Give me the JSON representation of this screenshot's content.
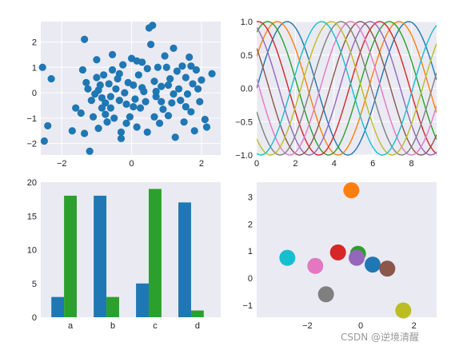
{
  "watermark": "CSDN @逆境清醒",
  "colors": {
    "panel_bg": "#eaeaf2",
    "grid": "#ffffff",
    "blue": "#1f77b4",
    "green": "#2ca02c"
  },
  "chart_data": [
    {
      "type": "scatter",
      "xlim": [
        -2.6,
        2.55
      ],
      "ylim": [
        -2.45,
        2.8
      ],
      "xticks": [
        -2,
        0,
        2
      ],
      "yticks": [
        -2,
        -1,
        0,
        1,
        2
      ],
      "grid": true,
      "color": "#1f77b4",
      "points": [
        [
          -2.55,
          1.0
        ],
        [
          -2.3,
          0.55
        ],
        [
          -2.4,
          -1.3
        ],
        [
          -2.5,
          -1.9
        ],
        [
          -1.7,
          -1.5
        ],
        [
          -1.35,
          2.1
        ],
        [
          -1.4,
          0.9
        ],
        [
          -1.3,
          0.4
        ],
        [
          -1.45,
          -0.8
        ],
        [
          -1.35,
          -1.6
        ],
        [
          -1.2,
          -2.3
        ],
        [
          -1.1,
          -0.95
        ],
        [
          -1.15,
          -0.3
        ],
        [
          -1.05,
          -0.05
        ],
        [
          -0.95,
          0.1
        ],
        [
          -0.9,
          0.3
        ],
        [
          -0.85,
          -0.6
        ],
        [
          -1.0,
          1.3
        ],
        [
          -0.95,
          -1.4
        ],
        [
          -0.8,
          0.7
        ],
        [
          -0.75,
          -0.4
        ],
        [
          -0.7,
          -1.15
        ],
        [
          -0.65,
          0.35
        ],
        [
          -0.6,
          -0.6
        ],
        [
          -0.55,
          0.9
        ],
        [
          -0.5,
          -1.0
        ],
        [
          -0.45,
          0.15
        ],
        [
          -0.4,
          0.55
        ],
        [
          -0.35,
          -0.3
        ],
        [
          -0.3,
          -1.8
        ],
        [
          -0.25,
          1.1
        ],
        [
          -0.2,
          0.0
        ],
        [
          -0.15,
          -0.45
        ],
        [
          -0.1,
          0.4
        ],
        [
          -0.05,
          -0.95
        ],
        [
          0.0,
          1.35
        ],
        [
          0.05,
          0.3
        ],
        [
          0.1,
          -0.25
        ],
        [
          0.15,
          -1.35
        ],
        [
          0.2,
          0.7
        ],
        [
          0.25,
          -0.6
        ],
        [
          0.3,
          1.2
        ],
        [
          0.35,
          0.05
        ],
        [
          0.4,
          -0.35
        ],
        [
          0.45,
          -1.55
        ],
        [
          0.5,
          2.55
        ],
        [
          0.6,
          2.65
        ],
        [
          0.55,
          1.9
        ],
        [
          0.65,
          0.45
        ],
        [
          0.7,
          -0.15
        ],
        [
          0.75,
          1.0
        ],
        [
          0.8,
          -1.2
        ],
        [
          0.85,
          0.25
        ],
        [
          0.9,
          -0.65
        ],
        [
          1.0,
          1.0
        ],
        [
          1.05,
          -0.9
        ],
        [
          1.1,
          0.55
        ],
        [
          1.15,
          -0.4
        ],
        [
          1.2,
          1.75
        ],
        [
          1.25,
          -1.75
        ],
        [
          1.35,
          0.15
        ],
        [
          1.4,
          -0.3
        ],
        [
          1.45,
          1.05
        ],
        [
          1.5,
          -1.15
        ],
        [
          1.55,
          0.6
        ],
        [
          1.6,
          -0.05
        ],
        [
          1.65,
          1.4
        ],
        [
          1.7,
          -0.75
        ],
        [
          1.75,
          0.35
        ],
        [
          1.8,
          -1.5
        ],
        [
          1.85,
          0.9
        ],
        [
          1.9,
          0.15
        ],
        [
          1.95,
          -0.35
        ],
        [
          2.0,
          0.5
        ],
        [
          2.1,
          -1.05
        ],
        [
          2.15,
          -1.35
        ],
        [
          2.3,
          0.75
        ],
        [
          -1.6,
          -0.6
        ],
        [
          -0.3,
          -1.55
        ],
        [
          0.95,
          1.45
        ],
        [
          -0.55,
          1.5
        ],
        [
          0.15,
          1.25
        ],
        [
          1.3,
          0.85
        ],
        [
          -0.85,
          -0.2
        ],
        [
          0.45,
          0.95
        ],
        [
          1.05,
          0.3
        ],
        [
          -1.25,
          0.15
        ],
        [
          0.65,
          -0.95
        ],
        [
          -0.15,
          -1.2
        ],
        [
          1.55,
          -0.55
        ],
        [
          -0.6,
          -0.15
        ],
        [
          0.3,
          0.2
        ],
        [
          0.85,
          -0.35
        ],
        [
          -1.0,
          0.6
        ],
        [
          1.2,
          -0.05
        ],
        [
          0.05,
          -0.55
        ],
        [
          -0.35,
          0.75
        ],
        [
          0.7,
          0.05
        ],
        [
          1.7,
          1.05
        ],
        [
          -0.75,
          -0.85
        ]
      ]
    },
    {
      "type": "line",
      "xlim": [
        0,
        9.3
      ],
      "ylim": [
        -1.0,
        1.0
      ],
      "xticks": [
        0,
        2,
        4,
        6,
        8
      ],
      "yticks": [
        -1.0,
        -0.5,
        0.0,
        0.5,
        1.0
      ],
      "grid": true,
      "function": "sin",
      "series": [
        {
          "phase": 0.0,
          "color": "#1f77b4"
        },
        {
          "phase": 0.5,
          "color": "#ff7f0e"
        },
        {
          "phase": 1.0,
          "color": "#2ca02c"
        },
        {
          "phase": 1.5,
          "color": "#d62728"
        },
        {
          "phase": 2.0,
          "color": "#9467bd"
        },
        {
          "phase": 2.5,
          "color": "#8c564b"
        },
        {
          "phase": 3.0,
          "color": "#e377c2"
        },
        {
          "phase": 3.5,
          "color": "#7f7f7f"
        },
        {
          "phase": 4.0,
          "color": "#bcbd22"
        },
        {
          "phase": 4.5,
          "color": "#17becf"
        }
      ]
    },
    {
      "type": "bar",
      "categories": [
        "a",
        "b",
        "c",
        "d"
      ],
      "ylim": [
        0,
        20
      ],
      "yticks": [
        0,
        5,
        10,
        15,
        20
      ],
      "grid": false,
      "series": [
        {
          "values": [
            3,
            18,
            5,
            17
          ],
          "color": "#1f77b4"
        },
        {
          "values": [
            18,
            3,
            19,
            1
          ],
          "color": "#2ca02c"
        }
      ]
    },
    {
      "type": "scatter",
      "xlim": [
        -3.9,
        2.85
      ],
      "ylim": [
        -1.45,
        3.55
      ],
      "xticks": [
        -2,
        0,
        2
      ],
      "yticks": [
        -1,
        0,
        1,
        2,
        3
      ],
      "grid": false,
      "points": [
        {
          "x": 0.45,
          "y": 0.5,
          "color": "#1f77b4"
        },
        {
          "x": -0.35,
          "y": 3.25,
          "color": "#ff7f0e"
        },
        {
          "x": -0.1,
          "y": 0.9,
          "color": "#2ca02c"
        },
        {
          "x": -0.85,
          "y": 0.95,
          "color": "#d62728"
        },
        {
          "x": -0.15,
          "y": 0.75,
          "color": "#9467bd"
        },
        {
          "x": 1.0,
          "y": 0.35,
          "color": "#8c564b"
        },
        {
          "x": -1.7,
          "y": 0.45,
          "color": "#e377c2"
        },
        {
          "x": -1.3,
          "y": -0.6,
          "color": "#7f7f7f"
        },
        {
          "x": 1.6,
          "y": -1.2,
          "color": "#bcbd22"
        },
        {
          "x": -2.75,
          "y": 0.75,
          "color": "#17becf"
        }
      ]
    }
  ]
}
